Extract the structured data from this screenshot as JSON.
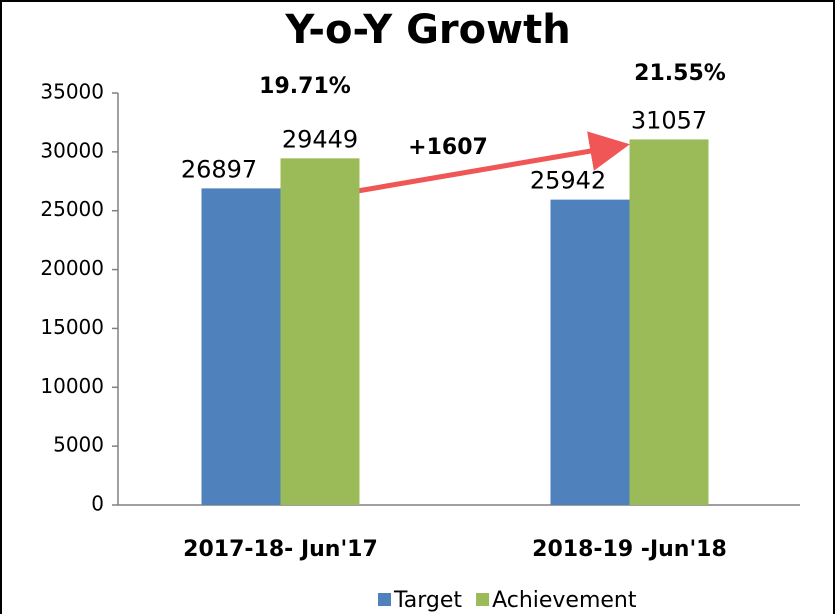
{
  "chart_data": {
    "type": "bar",
    "title": "Y-o-Y Growth",
    "categories": [
      "2017-18- Jun'17",
      "2018-19 -Jun'18"
    ],
    "series": [
      {
        "name": "Target",
        "color": "#4f81bd",
        "values": [
          26897,
          25942
        ]
      },
      {
        "name": "Achievement",
        "color": "#9bbb59",
        "values": [
          29449,
          31057
        ]
      }
    ],
    "ylim": [
      0,
      35000
    ],
    "yticks": [
      0,
      5000,
      10000,
      15000,
      20000,
      25000,
      30000,
      35000
    ],
    "grid": false,
    "legend": "bottom",
    "annotations": [
      "19.71%",
      "21.55%",
      "+1607"
    ]
  }
}
